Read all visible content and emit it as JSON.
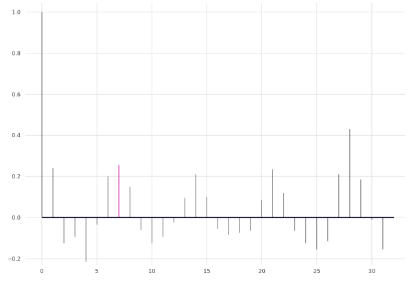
{
  "chart_data": {
    "type": "bar",
    "subtype": "stem",
    "title": "",
    "xlabel": "",
    "ylabel": "",
    "xlim": [
      -1.5,
      33
    ],
    "ylim": [
      -0.23,
      1.045
    ],
    "grid": true,
    "xticks": [
      0,
      5,
      10,
      15,
      20,
      25,
      30
    ],
    "yticks": [
      -0.2,
      0.0,
      0.2,
      0.4,
      0.6,
      0.8,
      1.0
    ],
    "xtick_labels": [
      "0",
      "5",
      "10",
      "15",
      "20",
      "25",
      "30"
    ],
    "ytick_labels": [
      "−0.2",
      "0.0",
      "0.2",
      "0.4",
      "0.6",
      "0.8",
      "1.0"
    ],
    "x": [
      0,
      1,
      2,
      3,
      4,
      5,
      6,
      7,
      8,
      9,
      10,
      11,
      12,
      13,
      14,
      15,
      16,
      17,
      18,
      19,
      20,
      21,
      22,
      23,
      24,
      25,
      26,
      27,
      28,
      29,
      30,
      31
    ],
    "values": [
      1.0,
      0.24,
      -0.125,
      -0.095,
      -0.215,
      -0.035,
      0.2,
      0.255,
      0.15,
      -0.06,
      -0.125,
      -0.095,
      -0.025,
      0.095,
      0.21,
      0.1,
      -0.055,
      -0.085,
      -0.075,
      -0.065,
      0.085,
      0.235,
      0.12,
      -0.065,
      -0.125,
      -0.155,
      -0.115,
      0.21,
      0.43,
      0.185,
      -0.01,
      -0.155
    ],
    "highlight_index": 7,
    "baseline": {
      "from": 0,
      "to": 32,
      "value": 0
    },
    "colors": {
      "stem": "#2a2a2a",
      "highlight": "#d41aa8",
      "baseline": "#000000",
      "band": "#8899ee",
      "grid": "#dddddd"
    }
  }
}
